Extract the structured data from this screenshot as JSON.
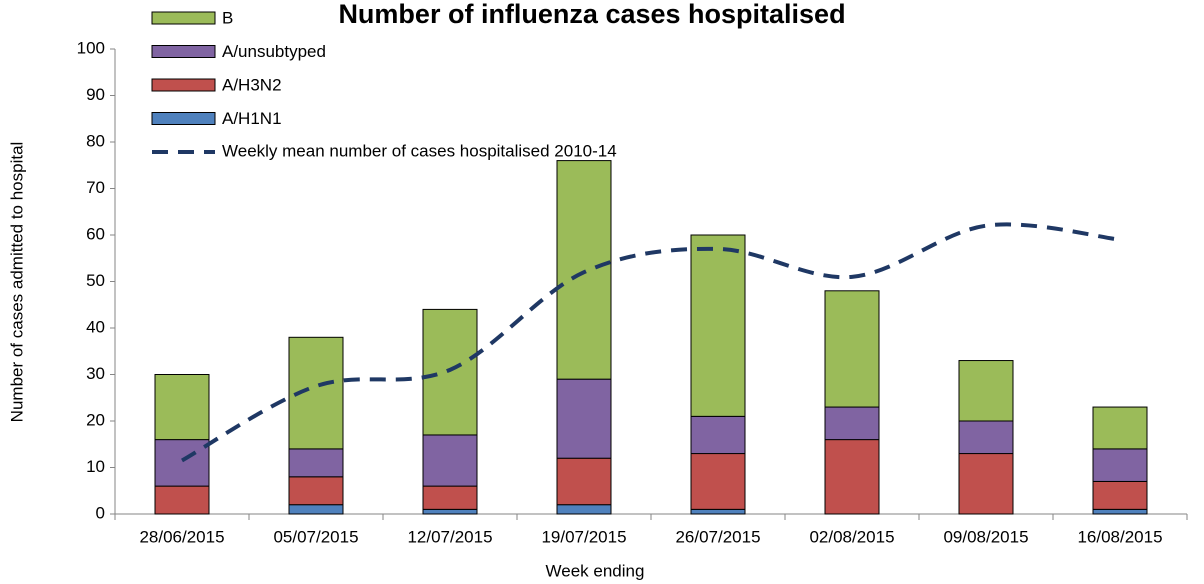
{
  "chart_data": {
    "type": "bar",
    "stacked": true,
    "title": "Number of influenza cases hospitalised",
    "x_label": "Week ending",
    "y_label": "Number of cases admitted to hospital",
    "categories": [
      "28/06/2015",
      "05/07/2015",
      "12/07/2015",
      "19/07/2015",
      "26/07/2015",
      "02/08/2015",
      "09/08/2015",
      "16/08/2015"
    ],
    "series": [
      {
        "name": "A/H1N1",
        "color": "#4f81bd",
        "values": [
          0,
          2,
          1,
          2,
          1,
          0,
          0,
          1
        ]
      },
      {
        "name": "A/H3N2",
        "color": "#c0504d",
        "values": [
          6,
          6,
          5,
          10,
          12,
          16,
          13,
          6
        ]
      },
      {
        "name": "A/unsubtyped",
        "color": "#8064a2",
        "values": [
          10,
          6,
          11,
          17,
          8,
          7,
          7,
          7
        ]
      },
      {
        "name": "B",
        "color": "#9bbb59",
        "values": [
          14,
          24,
          27,
          47,
          39,
          25,
          13,
          9
        ]
      },
      {
        "name": "Weekly mean number of cases hospitalised 2010-14",
        "type": "line",
        "dashed": true,
        "color": "#1f3864",
        "values": [
          11.5,
          27.5,
          31,
          52,
          57,
          51,
          62,
          59
        ]
      }
    ],
    "ylim": [
      0,
      100
    ],
    "yticks": [
      0,
      10,
      20,
      30,
      40,
      50,
      60,
      70,
      80,
      90,
      100
    ],
    "grid": false
  }
}
